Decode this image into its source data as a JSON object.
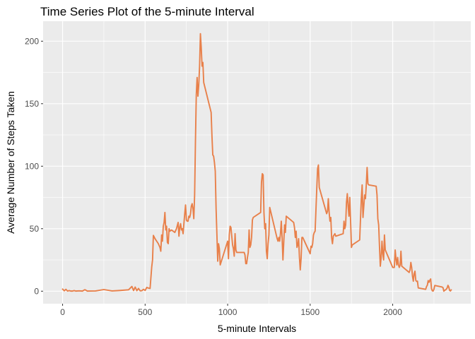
{
  "chart_data": {
    "type": "line",
    "title": "Time Series Plot of the 5-minute Interval",
    "xlabel": "5-minute Intervals",
    "ylabel": "Average Number of Steps Taken",
    "xlim": [
      -118,
      2473
    ],
    "ylim": [
      -10,
      216
    ],
    "x_ticks": [
      0,
      500,
      1000,
      1500,
      2000
    ],
    "x_tick_labels": [
      "0",
      "500",
      "1000",
      "1500",
      "2000"
    ],
    "y_ticks": [
      0,
      50,
      100,
      150,
      200
    ],
    "y_tick_labels": [
      "0",
      "50",
      "100",
      "150",
      "200"
    ],
    "grid": true,
    "legend": "none",
    "colors": {
      "panel_background": "#EBEBEB",
      "grid_major": "#FFFFFF",
      "line": "#E8804A",
      "tick_mark": "#333333"
    },
    "series": [
      {
        "points": [
          [
            0,
            1.7
          ],
          [
            10,
            0.3
          ],
          [
            20,
            1.5
          ],
          [
            30,
            0.1
          ],
          [
            40,
            0.5
          ],
          [
            50,
            0.1
          ],
          [
            60,
            0.1
          ],
          [
            70,
            0.5
          ],
          [
            80,
            0.1
          ],
          [
            100,
            0.3
          ],
          [
            120,
            0.1
          ],
          [
            135,
            1.2
          ],
          [
            150,
            0.1
          ],
          [
            200,
            0.2
          ],
          [
            250,
            1.3
          ],
          [
            300,
            0.2
          ],
          [
            350,
            0.6
          ],
          [
            400,
            1.1
          ],
          [
            420,
            3.8
          ],
          [
            430,
            0.5
          ],
          [
            440,
            3.3
          ],
          [
            450,
            0.4
          ],
          [
            460,
            2.2
          ],
          [
            470,
            0.3
          ],
          [
            480,
            0.4
          ],
          [
            490,
            1.5
          ],
          [
            500,
            0.6
          ],
          [
            510,
            3.0
          ],
          [
            520,
            2.5
          ],
          [
            530,
            2.2
          ],
          [
            540,
            19.3
          ],
          [
            545,
            25.0
          ],
          [
            550,
            44.6
          ],
          [
            560,
            42.0
          ],
          [
            570,
            40.0
          ],
          [
            580,
            38.0
          ],
          [
            590,
            35.0
          ],
          [
            595,
            32.0
          ],
          [
            600,
            45.0
          ],
          [
            605,
            40.0
          ],
          [
            610,
            52.0
          ],
          [
            615,
            55.0
          ],
          [
            620,
            63.0
          ],
          [
            625,
            49.0
          ],
          [
            630,
            52.0
          ],
          [
            635,
            39.0
          ],
          [
            640,
            38.0
          ],
          [
            645,
            50.0
          ],
          [
            650,
            48.0
          ],
          [
            660,
            49.0
          ],
          [
            670,
            48.0
          ],
          [
            680,
            47.0
          ],
          [
            690,
            50.0
          ],
          [
            700,
            55.0
          ],
          [
            705,
            44.0
          ],
          [
            710,
            51.0
          ],
          [
            715,
            54.0
          ],
          [
            720,
            49.0
          ],
          [
            725,
            50.0
          ],
          [
            730,
            46.0
          ],
          [
            740,
            62.0
          ],
          [
            745,
            69.0
          ],
          [
            750,
            57.0
          ],
          [
            755,
            56.0
          ],
          [
            760,
            56.0
          ],
          [
            765,
            60.0
          ],
          [
            770,
            59.0
          ],
          [
            775,
            62.0
          ],
          [
            780,
            68.0
          ],
          [
            785,
            70.0
          ],
          [
            790,
            66.0
          ],
          [
            795,
            58.0
          ],
          [
            800,
            77.0
          ],
          [
            805,
            120.0
          ],
          [
            810,
            157.0
          ],
          [
            815,
            171.0
          ],
          [
            820,
            156.0
          ],
          [
            825,
            165.0
          ],
          [
            830,
            180.0
          ],
          [
            835,
            206.0
          ],
          [
            840,
            195.0
          ],
          [
            845,
            180.0
          ],
          [
            850,
            183.0
          ],
          [
            855,
            167.0
          ],
          [
            900,
            143.0
          ],
          [
            905,
            124.0
          ],
          [
            910,
            109.0
          ],
          [
            915,
            108.0
          ],
          [
            920,
            103.0
          ],
          [
            925,
            96.0
          ],
          [
            930,
            66.0
          ],
          [
            935,
            45.0
          ],
          [
            940,
            24.0
          ],
          [
            945,
            38.0
          ],
          [
            950,
            34.0
          ],
          [
            955,
            21.0
          ],
          [
            1000,
            40.0
          ],
          [
            1005,
            26.0
          ],
          [
            1010,
            45.0
          ],
          [
            1015,
            52.0
          ],
          [
            1020,
            51.0
          ],
          [
            1025,
            44.0
          ],
          [
            1030,
            37.0
          ],
          [
            1035,
            34.0
          ],
          [
            1040,
            28.0
          ],
          [
            1045,
            46.0
          ],
          [
            1050,
            33.0
          ],
          [
            1055,
            31.0
          ],
          [
            1100,
            31.0
          ],
          [
            1105,
            29.0
          ],
          [
            1110,
            22.0
          ],
          [
            1115,
            22.0
          ],
          [
            1120,
            27.0
          ],
          [
            1125,
            31.0
          ],
          [
            1130,
            49.0
          ],
          [
            1135,
            35.0
          ],
          [
            1140,
            37.0
          ],
          [
            1145,
            43.0
          ],
          [
            1150,
            57.0
          ],
          [
            1155,
            59.0
          ],
          [
            1200,
            63.0
          ],
          [
            1205,
            87.0
          ],
          [
            1210,
            94.0
          ],
          [
            1215,
            93.0
          ],
          [
            1220,
            63.0
          ],
          [
            1225,
            50.0
          ],
          [
            1230,
            54.0
          ],
          [
            1235,
            32.0
          ],
          [
            1240,
            26.0
          ],
          [
            1245,
            38.0
          ],
          [
            1250,
            45.0
          ],
          [
            1255,
            67.0
          ],
          [
            1300,
            42.0
          ],
          [
            1305,
            40.0
          ],
          [
            1310,
            43.0
          ],
          [
            1315,
            40.0
          ],
          [
            1320,
            46.0
          ],
          [
            1325,
            56.0
          ],
          [
            1330,
            43.0
          ],
          [
            1335,
            25.0
          ],
          [
            1340,
            39.0
          ],
          [
            1345,
            53.0
          ],
          [
            1350,
            47.0
          ],
          [
            1355,
            60.0
          ],
          [
            1400,
            55.0
          ],
          [
            1405,
            51.0
          ],
          [
            1410,
            43.0
          ],
          [
            1415,
            48.0
          ],
          [
            1420,
            35.0
          ],
          [
            1425,
            37.0
          ],
          [
            1430,
            42.0
          ],
          [
            1435,
            27.0
          ],
          [
            1440,
            17.0
          ],
          [
            1445,
            26.0
          ],
          [
            1450,
            43.0
          ],
          [
            1455,
            43.0
          ],
          [
            1500,
            30.0
          ],
          [
            1505,
            36.0
          ],
          [
            1510,
            35.0
          ],
          [
            1515,
            38.0
          ],
          [
            1520,
            45.0
          ],
          [
            1525,
            47.0
          ],
          [
            1530,
            48.0
          ],
          [
            1535,
            65.0
          ],
          [
            1540,
            82.0
          ],
          [
            1545,
            98.0
          ],
          [
            1550,
            101.0
          ],
          [
            1555,
            83.0
          ],
          [
            1600,
            62.0
          ],
          [
            1605,
            64.0
          ],
          [
            1610,
            74.0
          ],
          [
            1615,
            63.0
          ],
          [
            1620,
            56.0
          ],
          [
            1625,
            59.0
          ],
          [
            1630,
            43.0
          ],
          [
            1635,
            38.0
          ],
          [
            1640,
            44.0
          ],
          [
            1645,
            45.0
          ],
          [
            1650,
            46.0
          ],
          [
            1655,
            44.0
          ],
          [
            1700,
            46.0
          ],
          [
            1705,
            56.0
          ],
          [
            1710,
            50.0
          ],
          [
            1715,
            53.0
          ],
          [
            1720,
            71.0
          ],
          [
            1725,
            78.0
          ],
          [
            1730,
            68.0
          ],
          [
            1735,
            60.0
          ],
          [
            1740,
            75.0
          ],
          [
            1745,
            56.0
          ],
          [
            1750,
            35.0
          ],
          [
            1755,
            37.0
          ],
          [
            1800,
            41.0
          ],
          [
            1805,
            58.0
          ],
          [
            1810,
            74.0
          ],
          [
            1815,
            85.0
          ],
          [
            1820,
            59.0
          ],
          [
            1825,
            68.0
          ],
          [
            1830,
            77.0
          ],
          [
            1835,
            74.0
          ],
          [
            1840,
            85.0
          ],
          [
            1845,
            99.0
          ],
          [
            1850,
            86.0
          ],
          [
            1855,
            85.0
          ],
          [
            1900,
            84.0
          ],
          [
            1905,
            77.0
          ],
          [
            1910,
            58.0
          ],
          [
            1915,
            53.0
          ],
          [
            1920,
            36.0
          ],
          [
            1925,
            20.0
          ],
          [
            1930,
            27.0
          ],
          [
            1935,
            40.0
          ],
          [
            1940,
            30.0
          ],
          [
            1945,
            25.0
          ],
          [
            1950,
            45.0
          ],
          [
            1955,
            33.0
          ],
          [
            2000,
            19.0
          ],
          [
            2005,
            19.0
          ],
          [
            2010,
            19.0
          ],
          [
            2015,
            33.0
          ],
          [
            2020,
            26.0
          ],
          [
            2025,
            21.0
          ],
          [
            2030,
            27.0
          ],
          [
            2035,
            21.0
          ],
          [
            2040,
            19.0
          ],
          [
            2045,
            21.0
          ],
          [
            2050,
            32.0
          ],
          [
            2055,
            20.0
          ],
          [
            2100,
            15.0
          ],
          [
            2105,
            17.0
          ],
          [
            2110,
            23.0
          ],
          [
            2115,
            19.0
          ],
          [
            2120,
            12.0
          ],
          [
            2125,
            8.0
          ],
          [
            2130,
            14.0
          ],
          [
            2135,
            16.0
          ],
          [
            2140,
            8.7
          ],
          [
            2145,
            7.8
          ],
          [
            2150,
            8.0
          ],
          [
            2155,
            2.6
          ],
          [
            2200,
            1.5
          ],
          [
            2205,
            3.7
          ],
          [
            2210,
            4.8
          ],
          [
            2215,
            8.5
          ],
          [
            2220,
            7.1
          ],
          [
            2225,
            8.7
          ],
          [
            2230,
            9.8
          ],
          [
            2235,
            2.2
          ],
          [
            2240,
            0.3
          ],
          [
            2245,
            0.1
          ],
          [
            2250,
            1.6
          ],
          [
            2255,
            4.6
          ],
          [
            2300,
            3.3
          ],
          [
            2305,
            2.8
          ],
          [
            2310,
            0.0
          ],
          [
            2315,
            0.8
          ],
          [
            2320,
            1.0
          ],
          [
            2325,
            1.6
          ],
          [
            2330,
            2.6
          ],
          [
            2335,
            4.7
          ],
          [
            2340,
            3.3
          ],
          [
            2345,
            0.6
          ],
          [
            2350,
            0.2
          ],
          [
            2355,
            1.1
          ]
        ]
      }
    ]
  }
}
